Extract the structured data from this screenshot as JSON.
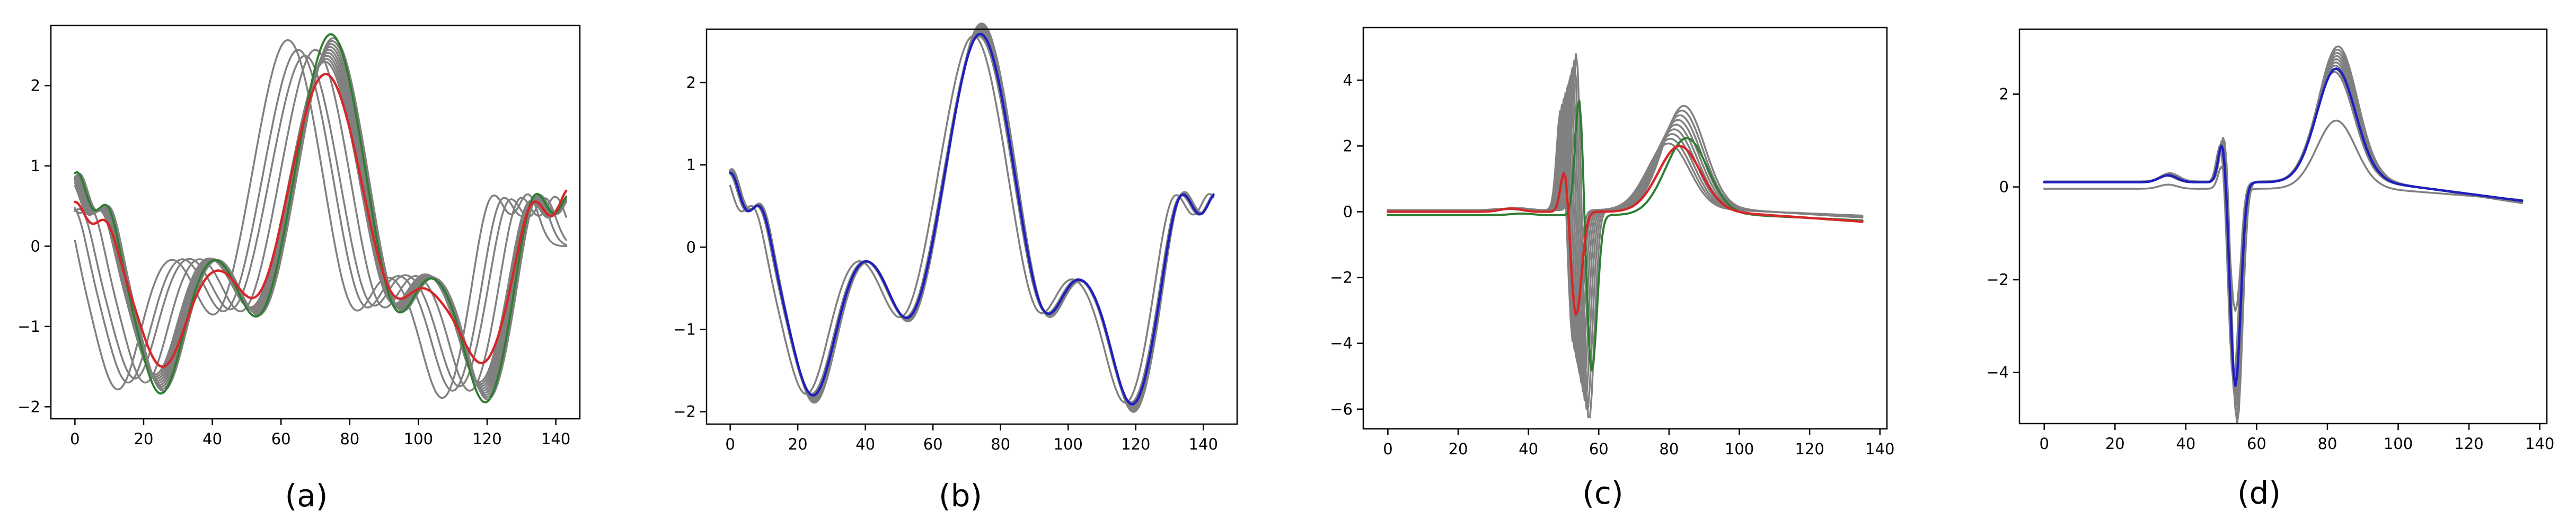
{
  "colors": {
    "gray": "#808080",
    "red": "#d62728",
    "green": "#2e7d32",
    "blue": "#1f1fbf"
  },
  "panel_labels": [
    "(a)",
    "(b)",
    "(c)",
    "(d)"
  ],
  "chart_data": [
    {
      "type": "line",
      "label": "(a)",
      "xlim": [
        -7,
        147
      ],
      "ylim": [
        -2.15,
        2.75
      ],
      "xticks": [
        0,
        20,
        40,
        60,
        80,
        100,
        120,
        140
      ],
      "yticks": [
        -2,
        -1,
        0,
        1,
        2
      ],
      "series": [
        {
          "color": "gray",
          "shape": "a",
          "shift": 0,
          "scale": 1,
          "offset": 0,
          "count": 9,
          "spread_shift": 1.2,
          "spread_scale": 0.06,
          "width": 3.5
        },
        {
          "color": "gray",
          "shape": "a",
          "shift": -12,
          "scale": 1.05,
          "offset": 0,
          "count": 1,
          "spread_shift": 0,
          "spread_scale": 0,
          "width": 3.5
        },
        {
          "color": "gray",
          "shape": "a",
          "shift": -9,
          "scale": 1.0,
          "offset": 0,
          "count": 1,
          "spread_shift": 0,
          "spread_scale": 0,
          "width": 3.5
        },
        {
          "color": "gray",
          "shape": "a",
          "shift": -7,
          "scale": 0.97,
          "offset": 0,
          "count": 1,
          "spread_shift": 0,
          "spread_scale": 0,
          "width": 3.5
        },
        {
          "color": "gray",
          "shape": "a",
          "shift": -4,
          "scale": 1.0,
          "offset": 0,
          "count": 1,
          "spread_shift": 0,
          "spread_scale": 0,
          "width": 3.5
        },
        {
          "color": "green",
          "shape": "a",
          "shift": 0.5,
          "scale": 1.08,
          "offset": 0,
          "count": 1,
          "spread_shift": 0,
          "spread_scale": 0,
          "width": 4
        },
        {
          "color": "red",
          "shape": "a_mean",
          "shift": 0,
          "scale": 1,
          "offset": 0,
          "count": 1,
          "spread_shift": 0,
          "spread_scale": 0,
          "width": 4.5
        }
      ]
    },
    {
      "type": "line",
      "label": "(b)",
      "xlim": [
        -7,
        150
      ],
      "ylim": [
        -2.15,
        2.65
      ],
      "xticks": [
        0,
        20,
        40,
        60,
        80,
        100,
        120,
        140
      ],
      "yticks": [
        -2,
        -1,
        0,
        1,
        2
      ],
      "series": [
        {
          "color": "gray",
          "shape": "a",
          "shift": 0,
          "scale": 1.08,
          "offset": 0,
          "count": 9,
          "spread_shift": 0.4,
          "spread_scale": 0.03,
          "width": 3.5
        },
        {
          "color": "gray",
          "shape": "a",
          "shift": -2,
          "scale": 1.05,
          "offset": 0,
          "count": 1,
          "spread_shift": 0,
          "spread_scale": 0,
          "width": 3.5
        },
        {
          "color": "blue",
          "shape": "a",
          "shift": 0,
          "scale": 1.06,
          "offset": 0,
          "count": 1,
          "spread_shift": 0,
          "spread_scale": 0,
          "width": 4.5
        }
      ]
    },
    {
      "type": "line",
      "label": "(c)",
      "xlim": [
        -7,
        142
      ],
      "ylim": [
        -6.6,
        5.6
      ],
      "xticks": [
        0,
        20,
        40,
        60,
        80,
        100,
        120,
        140
      ],
      "yticks": [
        -6,
        -4,
        -2,
        0,
        2,
        4
      ],
      "series": [
        {
          "color": "gray",
          "shape": "ecg",
          "shift": 0,
          "scale": 1.0,
          "offset": 0.05,
          "count": 9,
          "spread_shift": 2.2,
          "spread_scale": 0.22,
          "width": 3.5
        },
        {
          "color": "green",
          "shape": "ecg",
          "shift": 3,
          "scale": 0.9,
          "offset": -0.1,
          "count": 1,
          "spread_shift": 0,
          "spread_scale": 0,
          "width": 4
        },
        {
          "color": "red",
          "shape": "ecg_red",
          "shift": 0,
          "scale": 1,
          "offset": 0,
          "count": 1,
          "spread_shift": 0,
          "spread_scale": 0,
          "width": 4.5
        }
      ]
    },
    {
      "type": "line",
      "label": "(d)",
      "xlim": [
        -7,
        142
      ],
      "ylim": [
        -5.1,
        3.4
      ],
      "xticks": [
        0,
        20,
        40,
        60,
        80,
        100,
        120,
        140
      ],
      "yticks": [
        -4,
        -2,
        0,
        2
      ],
      "series": [
        {
          "color": "gray",
          "shape": "ecgd",
          "shift": 0,
          "scale": 1.08,
          "offset": 0,
          "count": 9,
          "spread_shift": 0.5,
          "spread_scale": 0.1,
          "width": 3.5
        },
        {
          "color": "gray",
          "shape": "ecgd",
          "shift": 0,
          "scale": 0.6,
          "offset": -0.1,
          "count": 1,
          "spread_shift": 0,
          "spread_scale": 0,
          "width": 3.5
        },
        {
          "color": "blue",
          "shape": "ecgd",
          "shift": 0,
          "scale": 1.0,
          "offset": 0,
          "count": 1,
          "spread_shift": 0,
          "spread_scale": 0,
          "width": 4.5
        }
      ]
    }
  ]
}
